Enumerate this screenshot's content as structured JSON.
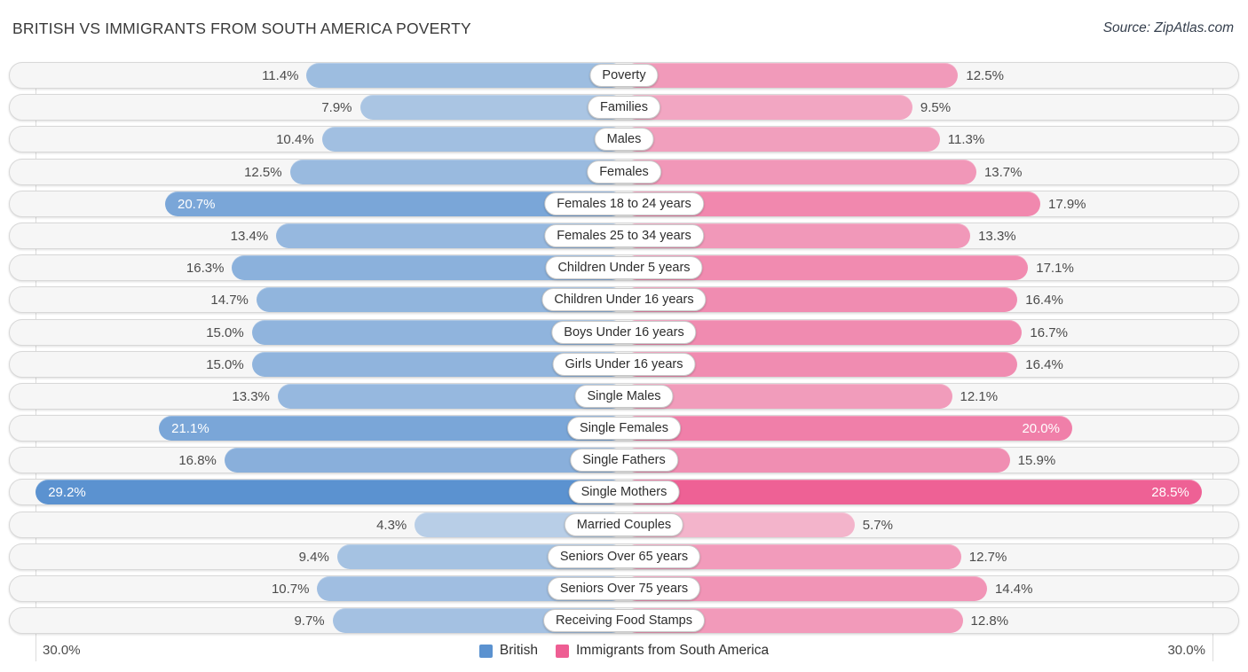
{
  "title": "BRITISH VS IMMIGRANTS FROM SOUTH AMERICA POVERTY",
  "source": "Source: ZipAtlas.com",
  "axis": {
    "left_label": "30.0%",
    "right_label": "30.0%",
    "max_percent": 30
  },
  "legend": [
    {
      "label": "British",
      "color": "#5b92d0"
    },
    {
      "label": "Immigrants from South America",
      "color": "#ee5e93"
    }
  ],
  "chart_data": {
    "type": "bar",
    "orientation": "bidirectional-horizontal",
    "title": "BRITISH VS IMMIGRANTS FROM SOUTH AMERICA POVERTY",
    "xlim": [
      -30,
      30
    ],
    "value_suffix": "%",
    "categories": [
      "Poverty",
      "Families",
      "Males",
      "Females",
      "Females 18 to 24 years",
      "Females 25 to 34 years",
      "Children Under 5 years",
      "Children Under 16 years",
      "Boys Under 16 years",
      "Girls Under 16 years",
      "Single Males",
      "Single Females",
      "Single Fathers",
      "Single Mothers",
      "Married Couples",
      "Seniors Over 65 years",
      "Seniors Over 75 years",
      "Receiving Food Stamps"
    ],
    "series": [
      {
        "name": "British",
        "side": "left",
        "color": "#5b92d0",
        "values": [
          11.4,
          7.9,
          10.4,
          12.5,
          20.7,
          13.4,
          16.3,
          14.7,
          15.0,
          15.0,
          13.3,
          21.1,
          16.8,
          29.2,
          4.3,
          9.4,
          10.7,
          9.7
        ]
      },
      {
        "name": "Immigrants from South America",
        "side": "right",
        "color": "#ee5e93",
        "values": [
          12.5,
          9.5,
          11.3,
          13.7,
          17.9,
          13.3,
          17.1,
          16.4,
          16.7,
          16.4,
          12.1,
          20.0,
          15.9,
          28.5,
          5.7,
          12.7,
          14.4,
          12.8
        ]
      }
    ],
    "legend_position": "bottom-center",
    "grid": "edge-lines-only"
  }
}
